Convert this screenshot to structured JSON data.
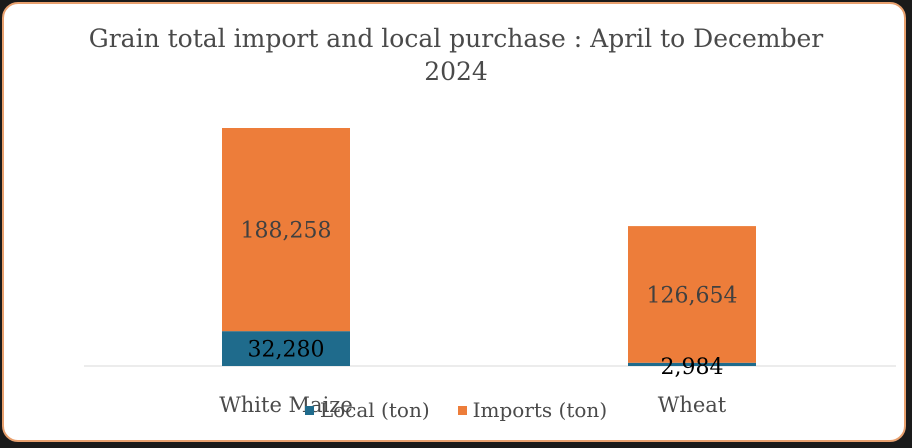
{
  "chart_data": {
    "type": "bar",
    "stacked": true,
    "title_line1": "Grain total import and local purchase : April to December",
    "title_line2": "2024",
    "categories": [
      "White Maize",
      "Wheat"
    ],
    "series": [
      {
        "name": "Local (ton)",
        "values": [
          32280,
          2984
        ],
        "labels": [
          "32,280",
          "2,984"
        ],
        "color": "#1f6b8c"
      },
      {
        "name": "Imports (ton)",
        "values": [
          188258,
          126654
        ],
        "labels": [
          "188,258",
          "126,654"
        ],
        "color": "#ed7d3a"
      }
    ],
    "ylim": [
      0,
      240000
    ],
    "grid": false,
    "legend_position": "bottom"
  }
}
